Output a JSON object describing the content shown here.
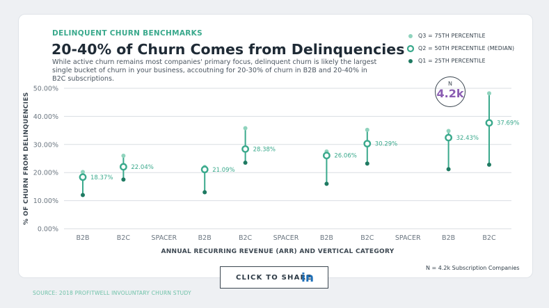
{
  "header": {
    "kicker": "DELINQUENT CHURN BENCHMARKS",
    "title": "20-40% of Churn Comes from Delinquencies",
    "description": "While active churn remains most companies' primary focus, delinquent churn is likely the largest single bucket of churn in your business, accoutning for 20-30% of churn in B2B and 20-40% in B2C subscriptions."
  },
  "legend": [
    {
      "symbol": "q3",
      "label": "Q3 = 75TH PERCENTILE"
    },
    {
      "symbol": "q2",
      "label": "Q2 = 50TH PERCENTILE (MEDIAN)"
    },
    {
      "symbol": "q1",
      "label": "Q1 = 25TH PERCENTILE"
    }
  ],
  "badge": {
    "label": "N",
    "value": "4.2k"
  },
  "footnote": "N = 4.2k Subscription Companies",
  "share": {
    "label": "CLICK TO SHARE",
    "icon": "linkedin-icon",
    "icon_text": "in"
  },
  "source": "SOURCE: 2018 PROFITWELL INVOLUNTARY CHURN STUDY",
  "colors": {
    "q3": "#8fd3bd",
    "median": "#3aa98c",
    "q1": "#1f7a62",
    "grid": "#d9dde2",
    "axis_text": "#6b7680"
  },
  "chart_data": {
    "type": "range-dot",
    "xlabel": "ANNUAL RECURRING REVENUE (ARR) AND VERTICAL CATEGORY",
    "ylabel": "% OF CHURN FROM DELINQUENCIES",
    "ylim": [
      0,
      50
    ],
    "yticks": [
      "0.00%",
      "10.00%",
      "20.00%",
      "30.00%",
      "40.00%",
      "50.00%"
    ],
    "ytick_values": [
      0,
      10,
      20,
      30,
      40,
      50
    ],
    "grid": true,
    "categories": [
      "B2B",
      "B2C",
      "SPACER",
      "B2B",
      "B2C",
      "SPACER",
      "B2B",
      "B2C",
      "SPACER",
      "B2B",
      "B2C"
    ],
    "series": [
      {
        "name": "Q3 = 75TH PERCENTILE",
        "values": [
          20.2,
          26.0,
          null,
          22.0,
          35.8,
          null,
          27.5,
          35.2,
          null,
          34.8,
          48.2
        ]
      },
      {
        "name": "Q2 = 50TH PERCENTILE (MEDIAN)",
        "values": [
          18.37,
          22.04,
          null,
          21.09,
          28.38,
          null,
          26.06,
          30.29,
          null,
          32.43,
          37.69
        ]
      },
      {
        "name": "Q1 = 25TH PERCENTILE",
        "values": [
          12.0,
          17.5,
          null,
          13.0,
          23.5,
          null,
          16.0,
          23.2,
          null,
          21.2,
          22.8
        ]
      }
    ],
    "median_labels": [
      "18.37%",
      "22.04%",
      "",
      "21.09%",
      "28.38%",
      "",
      "26.06%",
      "30.29%",
      "",
      "32.43%",
      "37.69%"
    ]
  }
}
